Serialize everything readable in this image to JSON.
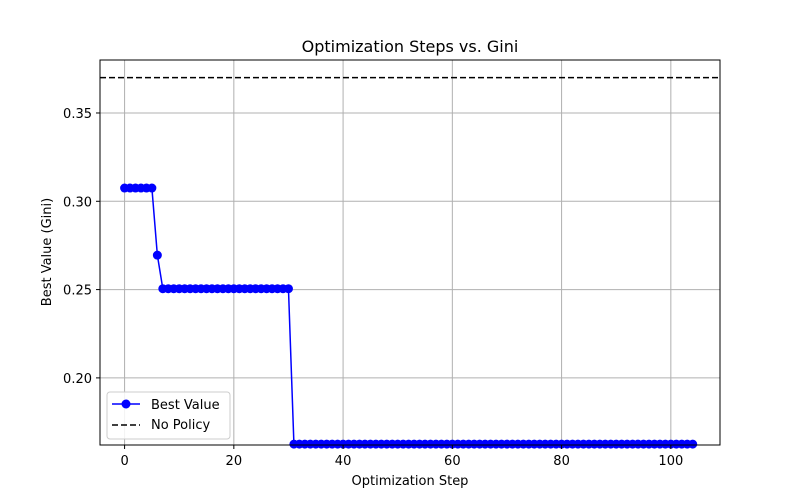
{
  "chart_data": {
    "type": "line",
    "title": "Optimization Steps vs. Gini",
    "xlabel": "Optimization Step",
    "ylabel": "Best Value (Gini)",
    "xlim": [
      -4.5,
      109
    ],
    "ylim": [
      0.162,
      0.38
    ],
    "xticks": [
      0,
      20,
      40,
      60,
      80,
      100
    ],
    "xtick_labels": [
      "0",
      "20",
      "40",
      "60",
      "80",
      "100"
    ],
    "yticks": [
      0.2,
      0.25,
      0.3,
      0.35
    ],
    "ytick_labels": [
      "0.20",
      "0.25",
      "0.30",
      "0.35"
    ],
    "grid": true,
    "legend": "lower-left",
    "series": [
      {
        "name": "Best Value",
        "color": "#0000ff",
        "marker": "circle",
        "style": "solid",
        "steps": [
          {
            "from": 0,
            "to": 5,
            "value": 0.3075
          },
          {
            "from": 6,
            "to": 6,
            "value": 0.2695
          },
          {
            "from": 7,
            "to": 30,
            "value": 0.2505
          },
          {
            "from": 31,
            "to": 104,
            "value": 0.1625
          }
        ]
      },
      {
        "name": "No Policy",
        "color": "#000000",
        "style": "dashed",
        "hline": 0.37
      }
    ]
  }
}
